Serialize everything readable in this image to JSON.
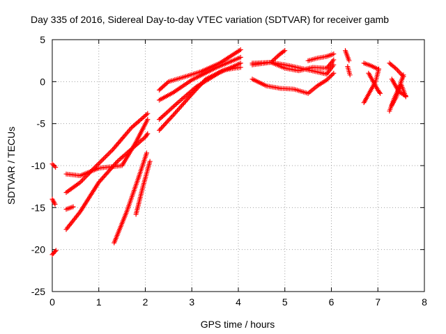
{
  "chart_data": {
    "type": "scatter",
    "title": "Day 335 of 2016, Sidereal Day-to-day VTEC variation (SDTVAR) for receiver gamb",
    "xlabel": "GPS time / hours",
    "ylabel": "SDTVAR / TECUs",
    "xlim": [
      0,
      8
    ],
    "ylim": [
      -25,
      5
    ],
    "xticks": [
      0,
      1,
      2,
      3,
      4,
      5,
      6,
      7,
      8
    ],
    "yticks": [
      -25,
      -20,
      -15,
      -10,
      -5,
      0,
      5
    ],
    "grid": true,
    "marker": "plus",
    "color": "#ff0000",
    "series": [
      {
        "segments": [
          {
            "x": [
              0.0,
              0.08
            ],
            "y": [
              -20.6,
              -20.1
            ]
          },
          {
            "x": [
              0.0,
              0.06
            ],
            "y": [
              -14.0,
              -14.6
            ]
          },
          {
            "x": [
              0.0,
              0.07
            ],
            "y": [
              -9.8,
              -10.2
            ]
          },
          {
            "x": [
              0.3,
              0.45
            ],
            "y": [
              -15.2,
              -14.9
            ]
          },
          {
            "x": [
              0.3,
              0.6,
              1.0,
              1.4,
              2.0,
              2.05
            ],
            "y": [
              -17.6,
              -15.5,
              -12.0,
              -9.5,
              -6.6,
              -6.2
            ]
          },
          {
            "x": [
              0.3,
              0.6,
              0.9,
              1.3,
              1.7,
              2.05
            ],
            "y": [
              -13.2,
              -12.0,
              -10.3,
              -8.1,
              -5.5,
              -3.8
            ]
          },
          {
            "x": [
              0.3,
              0.6,
              1.0,
              1.5,
              1.8,
              2.05
            ],
            "y": [
              -11.0,
              -11.2,
              -10.3,
              -10.0,
              -7.2,
              -4.5
            ]
          },
          {
            "x": [
              1.33,
              1.6,
              1.85,
              2.03
            ],
            "y": [
              -19.2,
              -15.5,
              -11.5,
              -8.5
            ]
          },
          {
            "x": [
              1.8,
              1.95,
              2.1
            ],
            "y": [
              -15.8,
              -12.5,
              -9.5
            ]
          },
          {
            "x": [
              2.3,
              2.5,
              2.8,
              3.2,
              3.6,
              4.05
            ],
            "y": [
              -1.0,
              0.0,
              0.5,
              1.2,
              2.2,
              3.8
            ]
          },
          {
            "x": [
              2.3,
              2.6,
              3.0,
              3.5,
              4.05
            ],
            "y": [
              -2.2,
              -1.3,
              0.2,
              1.6,
              2.9
            ]
          },
          {
            "x": [
              2.3,
              2.7,
              3.1,
              3.6,
              4.05
            ],
            "y": [
              -4.5,
              -2.5,
              -0.6,
              1.1,
              2.2
            ]
          },
          {
            "x": [
              2.3,
              2.6,
              3.0,
              3.3,
              3.7,
              4.05
            ],
            "y": [
              -5.8,
              -4.0,
              -1.5,
              0.3,
              1.4,
              1.7
            ]
          },
          {
            "x": [
              4.3,
              4.7,
              5.0,
              5.3,
              5.6,
              5.9,
              6.05
            ],
            "y": [
              2.2,
              2.3,
              1.6,
              1.3,
              1.7,
              1.6,
              2.6
            ]
          },
          {
            "x": [
              4.3,
              4.7,
              5.1,
              5.5,
              5.9,
              6.05
            ],
            "y": [
              2.0,
              2.3,
              1.9,
              1.4,
              0.9,
              2.0
            ]
          },
          {
            "x": [
              4.3,
              4.6,
              4.9,
              5.2,
              5.5,
              5.7,
              5.9,
              6.05
            ],
            "y": [
              0.3,
              -0.5,
              -0.8,
              -0.9,
              -1.4,
              -0.5,
              0.2,
              1.0
            ]
          },
          {
            "x": [
              4.7,
              4.9,
              5.0
            ],
            "y": [
              2.3,
              3.3,
              3.7
            ]
          },
          {
            "x": [
              5.5,
              5.7,
              5.9,
              6.05
            ],
            "y": [
              2.5,
              2.8,
              3.0,
              3.3
            ]
          },
          {
            "x": [
              6.3,
              6.38
            ],
            "y": [
              3.7,
              2.5
            ]
          },
          {
            "x": [
              6.35,
              6.4
            ],
            "y": [
              1.8,
              0.8
            ]
          },
          {
            "x": [
              6.7,
              6.85,
              6.95,
              7.02
            ],
            "y": [
              -2.5,
              -1.0,
              0.0,
              1.5
            ]
          },
          {
            "x": [
              6.7,
              6.85,
              7.0
            ],
            "y": [
              2.2,
              1.9,
              1.5
            ]
          },
          {
            "x": [
              6.8,
              6.9,
              7.0,
              7.05
            ],
            "y": [
              1.0,
              0.0,
              -1.0,
              -1.4
            ]
          },
          {
            "x": [
              7.25,
              7.35,
              7.45,
              7.55
            ],
            "y": [
              -3.5,
              -2.0,
              -0.8,
              0.8
            ]
          },
          {
            "x": [
              7.25,
              7.4,
              7.55
            ],
            "y": [
              2.2,
              1.5,
              0.6
            ]
          },
          {
            "x": [
              7.3,
              7.4,
              7.5,
              7.6
            ],
            "y": [
              -2.8,
              -1.8,
              -0.3,
              -1.8
            ]
          },
          {
            "x": [
              7.3,
              7.45,
              7.6
            ],
            "y": [
              0.3,
              -1.2,
              -1.7
            ]
          }
        ]
      }
    ]
  }
}
